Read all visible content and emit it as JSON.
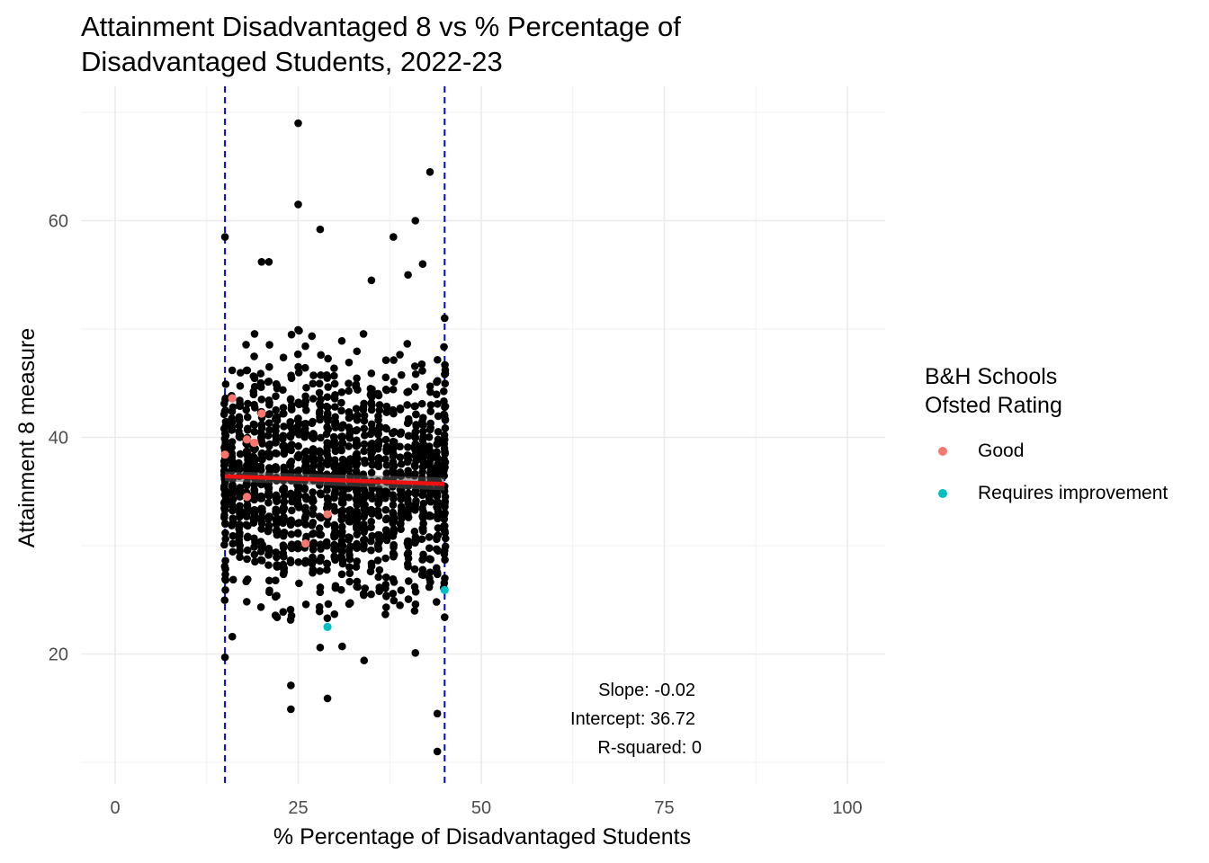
{
  "title_line1": "Attainment Disadvantaged 8 vs % Percentage of",
  "title_line2": "Disadvantaged Students, 2022-23",
  "legend": {
    "title_line1": "B&H Schools",
    "title_line2": "Ofsted Rating",
    "items": [
      {
        "label": "Good",
        "color": "#F8766D"
      },
      {
        "label": "Requires improvement",
        "color": "#00BFC4"
      }
    ]
  },
  "annotations": [
    "Slope: -0.02",
    "Intercept: 36.72",
    "R-squared: 0"
  ],
  "chart_data": {
    "type": "scatter",
    "xlabel": "% Percentage of Disadvantaged Students",
    "ylabel": "Attainment 8 measure",
    "xlim": [
      -5,
      105
    ],
    "ylim": [
      8,
      70
    ],
    "x_ticks": [
      0,
      25,
      50,
      75,
      100
    ],
    "y_ticks": [
      20,
      40,
      60
    ],
    "grid": true,
    "vlines": [
      15,
      45
    ],
    "vline_color": "#0000FF",
    "point_color": "#000000",
    "trend_line": {
      "x": [
        15,
        45
      ],
      "y": [
        36.4,
        35.7
      ],
      "color": "#EE1111"
    },
    "series": [
      {
        "name": "Good",
        "color": "#F8766D",
        "points": [
          [
            15,
            38.4
          ],
          [
            16,
            43.6
          ],
          [
            18,
            39.8
          ],
          [
            19,
            39.5
          ],
          [
            20,
            42.2
          ],
          [
            18,
            34.5
          ],
          [
            26,
            30.2
          ],
          [
            29,
            32.9
          ]
        ]
      },
      {
        "name": "Requires improvement",
        "color": "#00BFC4",
        "points": [
          [
            29,
            22.5
          ],
          [
            45,
            25.9
          ]
        ]
      }
    ],
    "background_points_description_values": {
      "x_range": [
        15,
        45
      ],
      "y_center": 36,
      "notable_points": [
        [
          25,
          69
        ],
        [
          25,
          61.5
        ],
        [
          43,
          64.5
        ],
        [
          15,
          58.5
        ],
        [
          41,
          60
        ],
        [
          20,
          56.2
        ],
        [
          21,
          56.2
        ],
        [
          28,
          59.2
        ],
        [
          38,
          58.5
        ],
        [
          42,
          56
        ],
        [
          15,
          19.7
        ],
        [
          24,
          17.1
        ],
        [
          24,
          14.9
        ],
        [
          29,
          15.9
        ],
        [
          34,
          19.4
        ],
        [
          41,
          20.1
        ],
        [
          44,
          14.5
        ],
        [
          44,
          11
        ],
        [
          31,
          20.7
        ],
        [
          28,
          20.6
        ],
        [
          45,
          23.4
        ],
        [
          16,
          21.6
        ],
        [
          35,
          54.5
        ],
        [
          40,
          55
        ],
        [
          45,
          51
        ]
      ]
    }
  }
}
